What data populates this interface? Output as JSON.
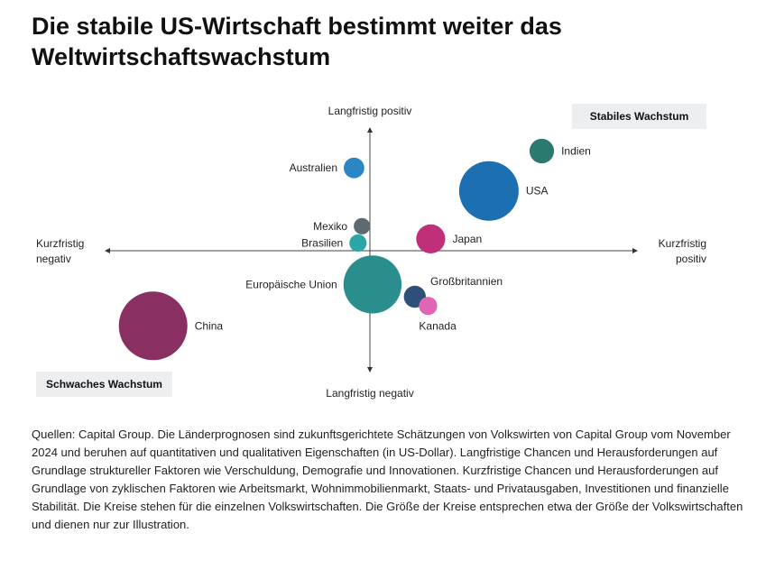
{
  "title": "Die stabile US-Wirtschaft bestimmt weiter das Weltwirtschaftswachstum",
  "chart_data": {
    "type": "scatter",
    "subtype": "bubble",
    "x_axis": {
      "label_negative": [
        "Kurzfristig",
        "negativ"
      ],
      "label_positive": [
        "Kurzfristig",
        "positiv"
      ],
      "range": [
        -10,
        10
      ]
    },
    "y_axis": {
      "label_positive": "Langfristig positiv",
      "label_negative": "Langfristig negativ",
      "range": [
        -10,
        10
      ]
    },
    "quadrant_labels": {
      "top_right": "Stabiles Wachstum",
      "bottom_left": "Schwaches Wachstum"
    },
    "points": [
      {
        "name": "Indien",
        "x": 6.5,
        "y": 6.5,
        "size": 1.0,
        "color": "#2b7a6f",
        "label_side": "right"
      },
      {
        "name": "Australien",
        "x": -0.6,
        "y": 5.4,
        "size": 0.7,
        "color": "#2a86c4",
        "label_side": "left"
      },
      {
        "name": "USA",
        "x": 4.5,
        "y": 3.9,
        "size": 5.9,
        "color": "#1c6fb0",
        "label_side": "right"
      },
      {
        "name": "Mexiko",
        "x": -0.3,
        "y": 1.6,
        "size": 0.45,
        "color": "#5e6a72",
        "label_side": "left"
      },
      {
        "name": "Brasilien",
        "x": -0.45,
        "y": 0.5,
        "size": 0.5,
        "color": "#2aa6a6",
        "label_side": "left"
      },
      {
        "name": "Japan",
        "x": 2.3,
        "y": 0.77,
        "size": 1.4,
        "color": "#c0307a",
        "label_side": "right"
      },
      {
        "name": "Europäische Union",
        "x": 0.1,
        "y": -2.2,
        "size": 5.6,
        "color": "#2a8f8c",
        "label_side": "left"
      },
      {
        "name": "Großbritannien",
        "x": 1.7,
        "y": -3.0,
        "size": 0.8,
        "color": "#2e4f7a",
        "label_side": "right-up"
      },
      {
        "name": "Kanada",
        "x": 2.2,
        "y": -3.6,
        "size": 0.55,
        "color": "#e066b3",
        "label_side": "below"
      },
      {
        "name": "China",
        "x": -8.2,
        "y": -4.9,
        "size": 7.8,
        "color": "#8a2f62",
        "label_side": "right"
      }
    ]
  },
  "notes": "Quellen: Capital Group. Die Länderprognosen sind zukunftsgerichtete Schätzungen von Volkswirten von Capital Group vom November 2024 und beruhen auf quantitativen und qualitativen Eigenschaften (in US-Dollar). Langfristige Chancen und Herausforderungen auf Grundlage struktureller Faktoren wie Verschuldung, Demografie und Innovationen. Kurzfristige Chancen und Herausforderungen auf Grundlage von zyklischen Faktoren wie Arbeitsmarkt, Wohnimmobilienmarkt, Staats- und Privatausgaben, Investitionen und finanzielle Stabilität. Die Kreise stehen für die einzelnen Volkswirtschaften. Die Größe der Kreise entsprechen etwa der Größe der Volkswirtschaften und dienen nur zur Illustration."
}
